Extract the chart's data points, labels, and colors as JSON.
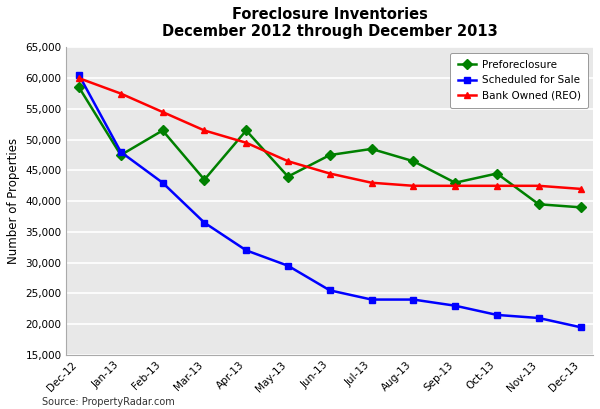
{
  "title_line1": "Foreclosure Inventories",
  "title_line2": "December 2012 through December 2013",
  "ylabel": "Number of Properties",
  "source": "Source: PropertyRadar.com",
  "categories": [
    "Dec-12",
    "Jan-13",
    "Feb-13",
    "Mar-13",
    "Apr-13",
    "May-13",
    "Jun-13",
    "Jul-13",
    "Aug-13",
    "Sep-13",
    "Oct-13",
    "Nov-13",
    "Dec-13"
  ],
  "preforeclosure": [
    58500,
    47500,
    51500,
    43500,
    51500,
    44000,
    47500,
    48500,
    46500,
    43000,
    44500,
    39500,
    39000
  ],
  "scheduled_for_sale": [
    60500,
    48000,
    43000,
    36500,
    32000,
    29500,
    25500,
    24000,
    24000,
    23000,
    21500,
    21000,
    19500
  ],
  "bank_owned": [
    60000,
    57500,
    54500,
    51500,
    49500,
    46500,
    44500,
    43000,
    42500,
    42500,
    42500,
    42500,
    42000
  ],
  "ylim": [
    15000,
    65000
  ],
  "yticks": [
    15000,
    20000,
    25000,
    30000,
    35000,
    40000,
    45000,
    50000,
    55000,
    60000,
    65000
  ],
  "preforeclosure_color": "#008000",
  "scheduled_color": "#0000FF",
  "bank_owned_color": "#FF0000",
  "background_color": "#ffffff",
  "plot_background": "#e8e8e8",
  "grid_color": "#ffffff",
  "marker_preforeclosure": "D",
  "marker_scheduled": "s",
  "marker_bank_owned": "^",
  "linewidth": 1.8,
  "markersize": 5
}
